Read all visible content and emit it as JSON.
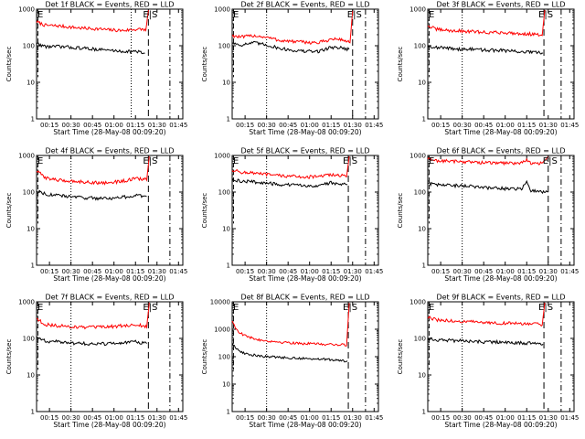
{
  "chart_data": [
    {
      "type": "line",
      "title": "Det 1f BLACK = Events, RED = LLD",
      "ylabel": "Counts/sec",
      "xlabel": "Start Time (28-May-08 00:09:20)",
      "yscale": "log",
      "ylim": [
        1,
        1000
      ],
      "yticks": [
        "1",
        "10",
        "100",
        "1000"
      ],
      "xlim": [
        0.1,
        1.8
      ],
      "xticks": [
        "00:15",
        "00:30",
        "00:45",
        "01:00",
        "01:15",
        "01:30",
        "01:45"
      ],
      "x_tick_values": [
        0.25,
        0.5,
        0.75,
        1.0,
        1.25,
        1.5,
        1.75
      ],
      "dotted_x": [
        1.2
      ],
      "dashed_x": [
        1.4
      ],
      "dashdot_x": [
        1.65
      ],
      "es_label": "E|S",
      "series": [
        {
          "name": "LLD",
          "color": "#ff0000",
          "x": [
            0.1,
            0.2,
            0.35,
            0.5,
            0.65,
            0.8,
            0.95,
            1.1,
            1.25,
            1.35,
            1.37,
            1.4
          ],
          "values": [
            450,
            360,
            350,
            320,
            300,
            290,
            270,
            260,
            280,
            280,
            260,
            950
          ]
        },
        {
          "name": "Events",
          "color": "#000000",
          "x": [
            0.1,
            0.2,
            0.35,
            0.5,
            0.65,
            0.8,
            0.95,
            1.1,
            1.25,
            1.36
          ],
          "values": [
            115,
            95,
            95,
            90,
            85,
            80,
            75,
            70,
            70,
            62
          ]
        }
      ]
    },
    {
      "type": "line",
      "title": "Det 2f BLACK = Events, RED = LLD",
      "ylabel": "Counts/sec",
      "xlabel": "Start Time (28-May-08 00:09:20)",
      "yscale": "log",
      "ylim": [
        1,
        1000
      ],
      "yticks": [
        "1",
        "10",
        "100",
        "1000"
      ],
      "xlim": [
        0.1,
        1.8
      ],
      "xticks": [
        "00:15",
        "00:30",
        "00:45",
        "01:00",
        "01:15",
        "01:30",
        "01:45"
      ],
      "x_tick_values": [
        0.25,
        0.5,
        0.75,
        1.0,
        1.25,
        1.5,
        1.75
      ],
      "dotted_x": [
        0.5
      ],
      "dashed_x": [
        1.5
      ],
      "dashdot_x": [
        1.65
      ],
      "es_label": "E|S",
      "series": [
        {
          "name": "LLD",
          "color": "#ff0000",
          "x": [
            0.1,
            0.2,
            0.35,
            0.5,
            0.65,
            0.8,
            0.95,
            1.1,
            1.25,
            1.35,
            1.45,
            1.47,
            1.5
          ],
          "values": [
            190,
            170,
            190,
            170,
            140,
            130,
            125,
            120,
            150,
            150,
            130,
            120,
            900
          ]
        },
        {
          "name": "Events",
          "color": "#000000",
          "x": [
            0.1,
            0.2,
            0.35,
            0.5,
            0.65,
            0.8,
            0.95,
            1.1,
            1.25,
            1.35,
            1.46
          ],
          "values": [
            120,
            105,
            120,
            105,
            85,
            75,
            70,
            70,
            90,
            90,
            80
          ]
        }
      ]
    },
    {
      "type": "line",
      "title": "Det 3f BLACK = Events, RED = LLD",
      "ylabel": "Counts/sec",
      "xlabel": "Start Time (28-May-08 00:09:20)",
      "yscale": "log",
      "ylim": [
        1,
        1000
      ],
      "yticks": [
        "1",
        "10",
        "100",
        "1000"
      ],
      "xlim": [
        0.1,
        1.8
      ],
      "xticks": [
        "00:15",
        "00:30",
        "00:45",
        "01:00",
        "01:15",
        "01:30",
        "01:45"
      ],
      "x_tick_values": [
        0.25,
        0.5,
        0.75,
        1.0,
        1.25,
        1.5,
        1.75
      ],
      "dotted_x": [
        0.5
      ],
      "dashed_x": [
        1.45
      ],
      "dashdot_x": [
        1.65
      ],
      "es_label": "E|S",
      "series": [
        {
          "name": "LLD",
          "color": "#ff0000",
          "x": [
            0.1,
            0.2,
            0.35,
            0.5,
            0.65,
            0.8,
            0.95,
            1.1,
            1.25,
            1.4,
            1.43,
            1.46
          ],
          "values": [
            350,
            280,
            260,
            250,
            240,
            230,
            230,
            220,
            210,
            200,
            190,
            950
          ]
        },
        {
          "name": "Events",
          "color": "#000000",
          "x": [
            0.1,
            0.2,
            0.35,
            0.5,
            0.65,
            0.8,
            0.95,
            1.1,
            1.25,
            1.44
          ],
          "values": [
            100,
            90,
            85,
            80,
            80,
            75,
            75,
            70,
            68,
            62
          ]
        }
      ]
    },
    {
      "type": "line",
      "title": "Det 4f BLACK = Events, RED = LLD",
      "ylabel": "Counts/sec",
      "xlabel": "Start Time (28-May-08 00:09:20)",
      "yscale": "log",
      "ylim": [
        1,
        1000
      ],
      "yticks": [
        "1",
        "10",
        "100",
        "1000"
      ],
      "xlim": [
        0.1,
        1.8
      ],
      "xticks": [
        "00:15",
        "00:30",
        "00:45",
        "01:00",
        "01:15",
        "01:30",
        "01:45"
      ],
      "x_tick_values": [
        0.25,
        0.5,
        0.75,
        1.0,
        1.25,
        1.5,
        1.75
      ],
      "dotted_x": [
        0.5
      ],
      "dashed_x": [
        1.4
      ],
      "dashdot_x": [
        1.65
      ],
      "es_label": "E|S",
      "series": [
        {
          "name": "LLD",
          "color": "#ff0000",
          "x": [
            0.1,
            0.2,
            0.35,
            0.5,
            0.65,
            0.8,
            0.95,
            1.1,
            1.25,
            1.35,
            1.38,
            1.41
          ],
          "values": [
            380,
            250,
            210,
            200,
            190,
            180,
            180,
            200,
            230,
            230,
            210,
            950
          ]
        },
        {
          "name": "Events",
          "color": "#000000",
          "x": [
            0.1,
            0.2,
            0.35,
            0.5,
            0.65,
            0.8,
            0.95,
            1.1,
            1.25,
            1.38
          ],
          "values": [
            110,
            90,
            80,
            75,
            70,
            68,
            68,
            72,
            80,
            75
          ]
        }
      ]
    },
    {
      "type": "line",
      "title": "Det 5f BLACK = Events, RED = LLD",
      "ylabel": "Counts/sec",
      "xlabel": "Start Time (28-May-08 00:09:20)",
      "yscale": "log",
      "ylim": [
        1,
        1000
      ],
      "yticks": [
        "1",
        "10",
        "100",
        "1000"
      ],
      "xlim": [
        0.1,
        1.8
      ],
      "xticks": [
        "00:15",
        "00:30",
        "00:45",
        "01:00",
        "01:15",
        "01:30",
        "01:45"
      ],
      "x_tick_values": [
        0.25,
        0.5,
        0.75,
        1.0,
        1.25,
        1.5,
        1.75
      ],
      "dotted_x": [
        0.5
      ],
      "dashed_x": [
        1.45
      ],
      "dashdot_x": [
        1.65
      ],
      "es_label": "E|S",
      "series": [
        {
          "name": "LLD",
          "color": "#ff0000",
          "x": [
            0.1,
            0.2,
            0.35,
            0.5,
            0.65,
            0.8,
            0.95,
            1.1,
            1.25,
            1.4,
            1.43,
            1.46
          ],
          "values": [
            400,
            350,
            330,
            300,
            280,
            270,
            260,
            260,
            300,
            280,
            260,
            950
          ]
        },
        {
          "name": "Events",
          "color": "#000000",
          "x": [
            0.1,
            0.2,
            0.35,
            0.5,
            0.65,
            0.8,
            0.95,
            1.1,
            1.25,
            1.44
          ],
          "values": [
            210,
            200,
            190,
            175,
            160,
            155,
            150,
            150,
            180,
            160
          ]
        }
      ]
    },
    {
      "type": "line",
      "title": "Det 6f BLACK = Events, RED = LLD",
      "ylabel": "Counts/sec",
      "xlabel": "Start Time (28-May-08 00:09:20)",
      "yscale": "log",
      "ylim": [
        1,
        1000
      ],
      "yticks": [
        "1",
        "10",
        "100",
        "1000"
      ],
      "xlim": [
        0.1,
        1.8
      ],
      "xticks": [
        "00:15",
        "00:30",
        "00:45",
        "01:00",
        "01:15",
        "01:30",
        "01:45"
      ],
      "x_tick_values": [
        0.25,
        0.5,
        0.75,
        1.0,
        1.25,
        1.5,
        1.75
      ],
      "dotted_x": [
        0.5
      ],
      "dashed_x": [
        1.5
      ],
      "dashdot_x": [
        1.65
      ],
      "es_label": "E|S",
      "series": [
        {
          "name": "LLD",
          "color": "#ff0000",
          "x": [
            0.1,
            0.2,
            0.35,
            0.5,
            0.65,
            0.8,
            0.95,
            1.1,
            1.2,
            1.25,
            1.3,
            1.4,
            1.5
          ],
          "values": [
            800,
            720,
            700,
            680,
            650,
            630,
            620,
            620,
            650,
            760,
            600,
            580,
            900
          ]
        },
        {
          "name": "Events",
          "color": "#000000",
          "x": [
            0.1,
            0.2,
            0.35,
            0.5,
            0.65,
            0.8,
            0.95,
            1.1,
            1.2,
            1.25,
            1.3,
            1.4,
            1.5
          ],
          "values": [
            170,
            160,
            150,
            150,
            140,
            130,
            125,
            120,
            125,
            200,
            110,
            105,
            100
          ]
        }
      ]
    },
    {
      "type": "line",
      "title": "Det 7f BLACK = Events, RED = LLD",
      "ylabel": "Counts/sec",
      "xlabel": "Start Time (28-May-08 00:09:20)",
      "yscale": "log",
      "ylim": [
        1,
        1000
      ],
      "yticks": [
        "1",
        "10",
        "100",
        "1000"
      ],
      "xlim": [
        0.1,
        1.8
      ],
      "xticks": [
        "00:15",
        "00:30",
        "00:45",
        "01:00",
        "01:15",
        "01:30",
        "01:45"
      ],
      "x_tick_values": [
        0.25,
        0.5,
        0.75,
        1.0,
        1.25,
        1.5,
        1.75
      ],
      "dotted_x": [
        0.5
      ],
      "dashed_x": [
        1.4
      ],
      "dashdot_x": [
        1.65
      ],
      "es_label": "E|S",
      "series": [
        {
          "name": "LLD",
          "color": "#ff0000",
          "x": [
            0.1,
            0.2,
            0.35,
            0.5,
            0.65,
            0.8,
            0.95,
            1.1,
            1.25,
            1.35,
            1.38,
            1.41
          ],
          "values": [
            350,
            240,
            220,
            210,
            200,
            200,
            210,
            220,
            230,
            220,
            200,
            950
          ]
        },
        {
          "name": "Events",
          "color": "#000000",
          "x": [
            0.1,
            0.2,
            0.35,
            0.5,
            0.65,
            0.8,
            0.95,
            1.1,
            1.25,
            1.38
          ],
          "values": [
            110,
            85,
            80,
            75,
            72,
            70,
            72,
            75,
            80,
            72
          ]
        }
      ]
    },
    {
      "type": "line",
      "title": "Det 8f BLACK = Events, RED = LLD",
      "ylabel": "Counts/sec",
      "xlabel": "Start Time (28-May-08 00:09:20)",
      "yscale": "log",
      "ylim": [
        1,
        10000
      ],
      "yticks": [
        "1",
        "10",
        "100",
        "1000",
        "10000"
      ],
      "xlim": [
        0.1,
        1.8
      ],
      "xticks": [
        "00:15",
        "00:30",
        "00:45",
        "01:00",
        "01:15",
        "01:30",
        "01:45"
      ],
      "x_tick_values": [
        0.25,
        0.5,
        0.75,
        1.0,
        1.25,
        1.5,
        1.75
      ],
      "dotted_x": [
        0.5
      ],
      "dashed_x": [
        1.45
      ],
      "dashdot_x": [
        1.65
      ],
      "es_label": "E|S",
      "series": [
        {
          "name": "LLD",
          "color": "#ff0000",
          "x": [
            0.1,
            0.15,
            0.2,
            0.3,
            0.4,
            0.5,
            0.65,
            0.8,
            0.95,
            1.1,
            1.25,
            1.4,
            1.43,
            1.46
          ],
          "values": [
            2000,
            1000,
            700,
            500,
            420,
            380,
            340,
            320,
            300,
            290,
            280,
            270,
            250,
            9000
          ]
        },
        {
          "name": "Events",
          "color": "#000000",
          "x": [
            0.1,
            0.15,
            0.2,
            0.3,
            0.4,
            0.5,
            0.65,
            0.8,
            0.95,
            1.1,
            1.25,
            1.44
          ],
          "values": [
            300,
            200,
            150,
            120,
            110,
            100,
            95,
            90,
            85,
            82,
            78,
            70
          ]
        }
      ]
    },
    {
      "type": "line",
      "title": "Det 9f BLACK = Events, RED = LLD",
      "ylabel": "Counts/sec",
      "xlabel": "Start Time (28-May-08 00:09:20)",
      "yscale": "log",
      "ylim": [
        1,
        1000
      ],
      "yticks": [
        "1",
        "10",
        "100",
        "1000"
      ],
      "xlim": [
        0.1,
        1.8
      ],
      "xticks": [
        "00:15",
        "00:30",
        "00:45",
        "01:00",
        "01:15",
        "01:30",
        "01:45"
      ],
      "x_tick_values": [
        0.25,
        0.5,
        0.75,
        1.0,
        1.25,
        1.5,
        1.75
      ],
      "dotted_x": [
        0.5
      ],
      "dashed_x": [
        1.45
      ],
      "dashdot_x": [
        1.65
      ],
      "es_label": "E|S",
      "series": [
        {
          "name": "LLD",
          "color": "#ff0000",
          "x": [
            0.1,
            0.2,
            0.35,
            0.5,
            0.65,
            0.8,
            0.95,
            1.1,
            1.25,
            1.4,
            1.43,
            1.46
          ],
          "values": [
            380,
            320,
            300,
            290,
            280,
            270,
            260,
            260,
            250,
            240,
            230,
            950
          ]
        },
        {
          "name": "Events",
          "color": "#000000",
          "x": [
            0.1,
            0.2,
            0.35,
            0.5,
            0.65,
            0.8,
            0.95,
            1.1,
            1.25,
            1.44
          ],
          "values": [
            100,
            90,
            88,
            85,
            82,
            80,
            78,
            76,
            74,
            70
          ]
        }
      ]
    }
  ]
}
